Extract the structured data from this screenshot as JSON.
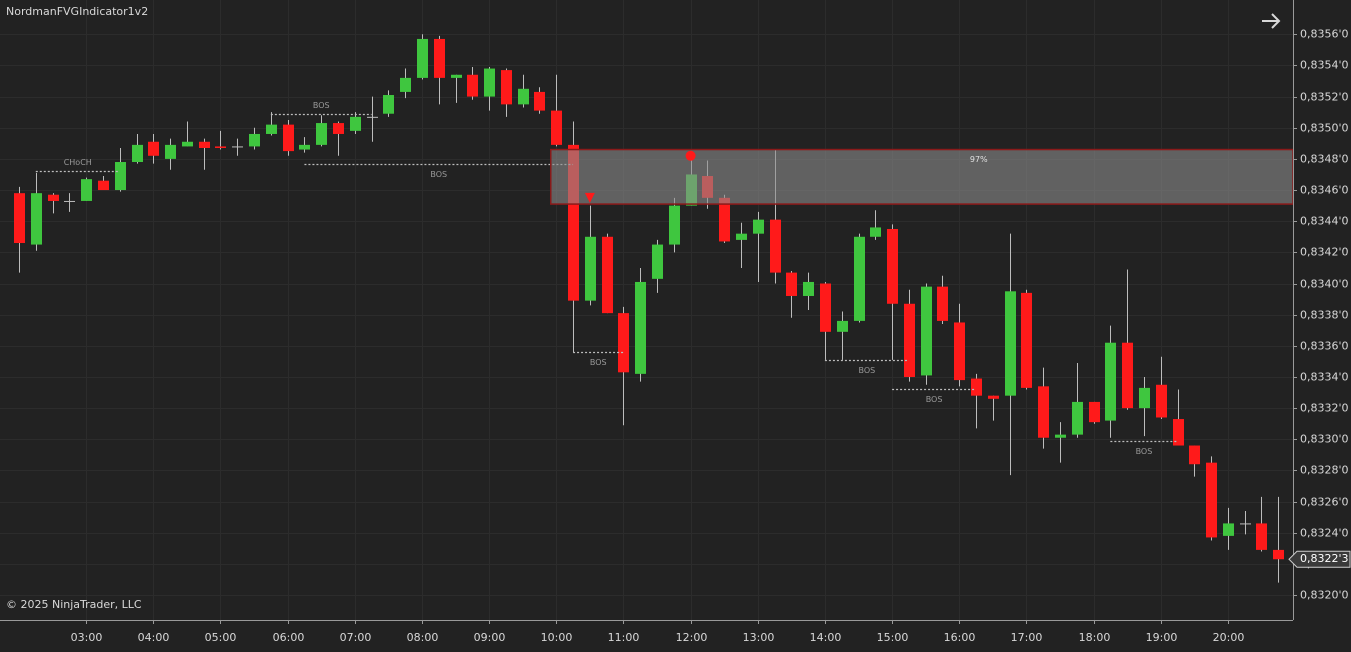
{
  "chart_data": {
    "type": "candlestick",
    "title": "NordmanFVGIndicator1v2",
    "copyright": "© 2025 NinjaTrader, LLC",
    "categories": [
      null,
      null,
      null,
      null,
      "03:00",
      null,
      null,
      null,
      "04:00",
      null,
      null,
      null,
      "05:00",
      null,
      null,
      null,
      "06:00",
      null,
      null,
      null,
      "07:00",
      null,
      null,
      null,
      "08:00",
      null,
      null,
      null,
      "09:00",
      null,
      null,
      null,
      "10:00",
      null,
      null,
      null,
      "11:00",
      null,
      null,
      null,
      "12:00",
      null,
      null,
      null,
      "13:00",
      null,
      null,
      null,
      "14:00",
      null,
      null,
      null,
      "15:00",
      null,
      null,
      null,
      "16:00",
      null,
      null,
      null,
      "17:00",
      null,
      null,
      null,
      "18:00",
      null,
      null,
      null,
      "19:00",
      null,
      null,
      null,
      "20:00",
      null,
      null,
      null
    ],
    "open": [
      0.83458,
      0.83425,
      0.83457,
      0.83453,
      0.83453,
      0.83466,
      0.8346,
      0.83478,
      0.83491,
      0.8348,
      0.83488,
      0.83491,
      0.83488,
      0.83488,
      0.83488,
      0.83496,
      0.83502,
      0.83486,
      0.83489,
      0.83503,
      0.83498,
      0.83507,
      0.83509,
      0.83523,
      0.83532,
      0.83557,
      0.83532,
      0.83534,
      0.8352,
      0.83537,
      0.83515,
      0.83523,
      0.83511,
      0.83489,
      0.83389,
      0.8343,
      0.83381,
      0.83342,
      0.83403,
      0.83425,
      0.8345,
      0.83469,
      0.83455,
      0.83428,
      0.83432,
      0.83441,
      0.83407,
      0.83392,
      0.834,
      0.83369,
      0.83376,
      0.8343,
      0.83435,
      0.83387,
      0.83341,
      0.83398,
      0.83375,
      0.83339,
      0.83328,
      0.83328,
      0.83394,
      0.83334,
      0.83301,
      0.83303,
      0.83324,
      0.83312,
      0.83362,
      0.8332,
      0.83335,
      0.83313,
      0.83296,
      0.83285,
      0.83238,
      0.83246,
      0.83246,
      0.83229
    ],
    "high": [
      0.83462,
      0.83471,
      0.83458,
      0.83458,
      0.83468,
      0.83469,
      0.83487,
      0.83496,
      0.83496,
      0.83493,
      0.83504,
      0.83493,
      0.83498,
      0.83493,
      0.835,
      0.8351,
      0.83505,
      0.83494,
      0.83508,
      0.83504,
      0.8351,
      0.8352,
      0.83524,
      0.83538,
      0.8356,
      0.83559,
      0.83534,
      0.83539,
      0.83539,
      0.83538,
      0.83534,
      0.83526,
      0.83534,
      0.83504,
      0.8345,
      0.83432,
      0.83385,
      0.8341,
      0.83428,
      0.83455,
      0.83479,
      0.83479,
      0.83457,
      0.83439,
      0.83446,
      0.83486,
      0.83408,
      0.83407,
      0.83401,
      0.83382,
      0.83432,
      0.83447,
      0.83438,
      0.83396,
      0.834,
      0.83405,
      0.83387,
      0.83342,
      0.83328,
      0.83432,
      0.83396,
      0.83346,
      0.83311,
      0.83349,
      0.83324,
      0.83373,
      0.83409,
      0.8334,
      0.83353,
      0.83332,
      0.83296,
      0.83289,
      0.83256,
      0.83254,
      0.83263,
      0.83263
    ],
    "low": [
      0.83407,
      0.83421,
      0.83445,
      0.83446,
      0.83453,
      0.8346,
      0.83459,
      0.83477,
      0.83477,
      0.83473,
      0.83488,
      0.83473,
      0.83486,
      0.83482,
      0.83486,
      0.83495,
      0.83482,
      0.83484,
      0.83488,
      0.83482,
      0.83496,
      0.83491,
      0.83507,
      0.83519,
      0.83531,
      0.83515,
      0.83516,
      0.83518,
      0.83511,
      0.83507,
      0.83513,
      0.83509,
      0.83488,
      0.83356,
      0.83386,
      0.83381,
      0.83309,
      0.83337,
      0.83394,
      0.8342,
      0.8345,
      0.83448,
      0.83426,
      0.8341,
      0.83401,
      0.834,
      0.83378,
      0.83383,
      0.83351,
      0.83351,
      0.83375,
      0.83428,
      0.83351,
      0.83337,
      0.83335,
      0.83374,
      0.83334,
      0.83307,
      0.83312,
      0.83277,
      0.83332,
      0.83294,
      0.83285,
      0.83301,
      0.8331,
      0.83301,
      0.83319,
      0.83302,
      0.83313,
      0.83296,
      0.83276,
      0.83235,
      0.83229,
      0.83239,
      0.83228,
      0.83208
    ],
    "close": [
      0.83426,
      0.83458,
      0.83453,
      0.83453,
      0.83467,
      0.8346,
      0.83478,
      0.83489,
      0.83482,
      0.83489,
      0.83491,
      0.83487,
      0.83487,
      0.83488,
      0.83496,
      0.83502,
      0.83485,
      0.83489,
      0.83503,
      0.83496,
      0.83507,
      0.83507,
      0.83521,
      0.83532,
      0.83557,
      0.83532,
      0.83534,
      0.8352,
      0.83538,
      0.83515,
      0.83525,
      0.83511,
      0.83489,
      0.83389,
      0.8343,
      0.83381,
      0.83343,
      0.83401,
      0.83425,
      0.8345,
      0.8347,
      0.83455,
      0.83427,
      0.83432,
      0.83441,
      0.83407,
      0.83392,
      0.83401,
      0.83369,
      0.83376,
      0.8343,
      0.83436,
      0.83387,
      0.8334,
      0.83398,
      0.83376,
      0.83338,
      0.83328,
      0.83326,
      0.83395,
      0.83333,
      0.83301,
      0.83303,
      0.83324,
      0.83311,
      0.83362,
      0.8332,
      0.83333,
      0.83314,
      0.83296,
      0.83284,
      0.83237,
      0.83246,
      0.83246,
      0.83229,
      0.83223
    ],
    "up_color": "#3fc63f",
    "down_color": "#ff1a1a",
    "wick_color": "#bdbdbd",
    "ylim": [
      0.83184,
      0.83582
    ],
    "yticks": [
      {
        "value": 0.832,
        "label": "0,8320'0"
      },
      {
        "value": 0.8322,
        "label": "0,8322'0"
      },
      {
        "value": 0.8324,
        "label": "0,8324'0"
      },
      {
        "value": 0.8326,
        "label": "0,8326'0"
      },
      {
        "value": 0.8328,
        "label": "0,8328'0"
      },
      {
        "value": 0.833,
        "label": "0,8330'0"
      },
      {
        "value": 0.8332,
        "label": "0,8332'0"
      },
      {
        "value": 0.8334,
        "label": "0,8334'0"
      },
      {
        "value": 0.8336,
        "label": "0,8336'0"
      },
      {
        "value": 0.8338,
        "label": "0,8338'0"
      },
      {
        "value": 0.834,
        "label": "0,8340'0"
      },
      {
        "value": 0.8342,
        "label": "0,8342'0"
      },
      {
        "value": 0.8344,
        "label": "0,8344'0"
      },
      {
        "value": 0.8346,
        "label": "0,8346'0"
      },
      {
        "value": 0.8348,
        "label": "0,8348'0"
      },
      {
        "value": 0.835,
        "label": "0,8350'0"
      },
      {
        "value": 0.8352,
        "label": "0,8352'0"
      },
      {
        "value": 0.8354,
        "label": "0,8354'0"
      },
      {
        "value": 0.8356,
        "label": "0,8356'0"
      }
    ],
    "grid": true,
    "zone": {
      "x": 32,
      "top": 0.83486,
      "bottom": 0.83451,
      "label": "97%",
      "color": "#8b1a1a"
    },
    "levels": [
      {
        "name": "CHoCH",
        "value": 0.83472,
        "start": 1,
        "end": 6,
        "label_position": "above"
      },
      {
        "name": "BOS",
        "value": 0.83509,
        "start": 15,
        "end": 21,
        "label_position": "above"
      },
      {
        "name": "BOS",
        "value": 0.83477,
        "start": 17,
        "end": 33,
        "label_position": "below"
      },
      {
        "name": "BOS",
        "value": 0.83356,
        "start": 33,
        "end": 36,
        "label_position": "below"
      },
      {
        "name": "BOS",
        "value": 0.83351,
        "start": 48,
        "end": 53,
        "label_position": "below"
      },
      {
        "name": "BOS",
        "value": 0.83332,
        "start": 52,
        "end": 57,
        "label_position": "below"
      },
      {
        "name": "BOS",
        "value": 0.83299,
        "start": 65,
        "end": 69,
        "label_position": "below"
      }
    ],
    "markers": [
      {
        "shape": "triangle-down",
        "x": 34,
        "y": 0.83455,
        "color": "#ff1a1a"
      },
      {
        "shape": "circle",
        "x": 40,
        "y": 0.83482,
        "color": "#ff1a1a"
      }
    ],
    "last_price": {
      "value": 0.83223,
      "label": "0,8322'3"
    }
  }
}
